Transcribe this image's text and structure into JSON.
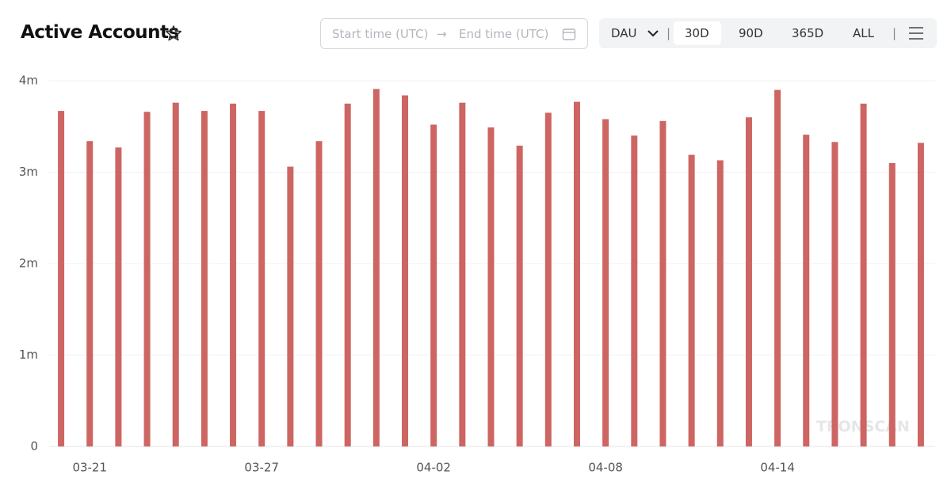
{
  "header": {
    "title": "Active Accounts",
    "start_placeholder": "Start time (UTC)",
    "end_placeholder": "End time (UTC)",
    "metric": "DAU",
    "ranges": [
      "30D",
      "90D",
      "365D",
      "ALL"
    ],
    "active_range": "30D"
  },
  "watermark": "TRONSCAN",
  "chart_data": {
    "type": "bar",
    "color": "#cd6563",
    "grid": true,
    "categories": [
      null,
      "03-21",
      null,
      null,
      null,
      null,
      null,
      "03-27",
      null,
      null,
      null,
      null,
      null,
      "04-02",
      null,
      null,
      null,
      null,
      null,
      "04-08",
      null,
      null,
      null,
      null,
      null,
      "04-14",
      null,
      null,
      null,
      null,
      null
    ],
    "values": [
      3.67,
      3.34,
      3.27,
      3.66,
      3.76,
      3.67,
      3.75,
      3.67,
      3.06,
      3.34,
      3.75,
      3.91,
      3.84,
      3.52,
      3.76,
      3.49,
      3.29,
      3.65,
      3.77,
      3.58,
      3.4,
      3.56,
      3.19,
      3.13,
      3.6,
      3.9,
      3.41,
      3.33,
      3.75,
      3.1,
      3.32
    ],
    "ylim": [
      0,
      4
    ],
    "yticks": [
      0,
      {
        "value": 1,
        "label": "1m"
      },
      {
        "value": 2,
        "label": "2m"
      },
      {
        "value": 3,
        "label": "3m"
      },
      {
        "value": 4,
        "label": "4m"
      }
    ]
  }
}
